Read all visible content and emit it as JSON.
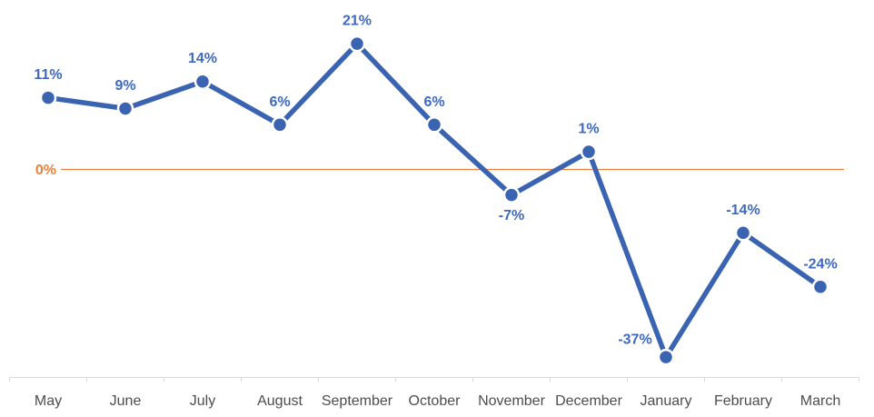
{
  "chart_data": {
    "type": "line",
    "title": "",
    "xlabel": "",
    "ylabel": "",
    "categories": [
      "May",
      "June",
      "July",
      "August",
      "September",
      "October",
      "November",
      "December",
      "January",
      "February",
      "March"
    ],
    "series": [
      {
        "name": "",
        "values": [
          11,
          9,
          14,
          6,
          21,
          6,
          -7,
          1,
          -37,
          -14,
          -24
        ],
        "labels": [
          "11%",
          "9%",
          "14%",
          "6%",
          "21%",
          "6%",
          "-7%",
          "1%",
          "-37%",
          "-14%",
          "-24%"
        ]
      }
    ],
    "ylim": [
      -45,
      30
    ],
    "grid": false,
    "legend": false,
    "zero_line": {
      "label": "0%",
      "value": 0
    },
    "label_positions": [
      "above",
      "above",
      "above",
      "above",
      "above",
      "above",
      "below",
      "above",
      "above-left",
      "above",
      "above"
    ],
    "colors": {
      "line": "#3A63B2",
      "marker": "#3A63B2",
      "marker_ring": "#FFFFFF",
      "data_label": "#3E69BE",
      "zero_line": "#E8823C",
      "zero_label": "#E8823C",
      "axis_line": "#D9D9D9",
      "axis_label": "#4D4D4D"
    }
  }
}
